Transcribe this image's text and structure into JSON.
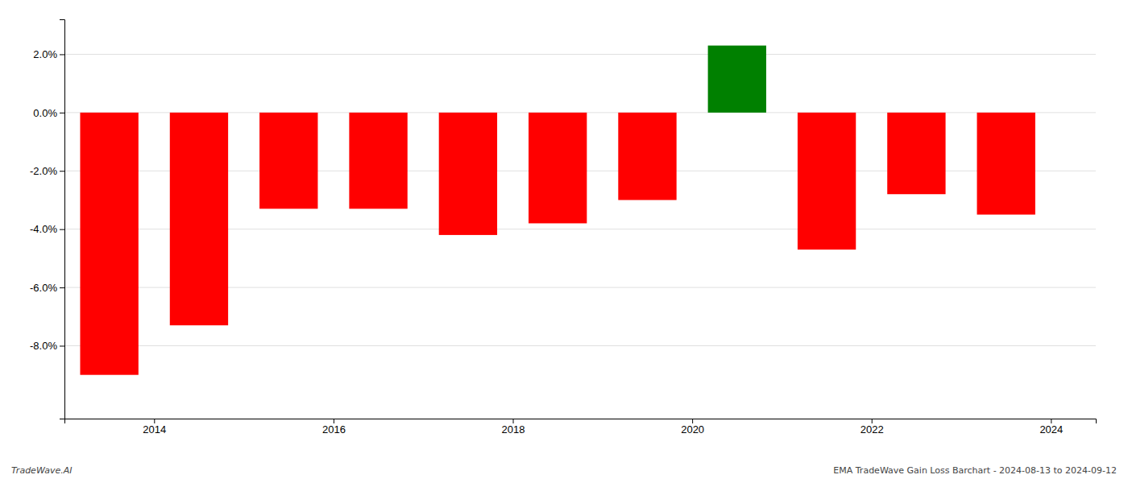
{
  "chart_data": {
    "type": "bar",
    "x": [
      2013.5,
      2014.5,
      2015.5,
      2016.5,
      2017.5,
      2018.5,
      2019.5,
      2020.5,
      2021.5,
      2022.5,
      2023.5
    ],
    "values": [
      -0.09,
      -0.073,
      -0.033,
      -0.033,
      -0.042,
      -0.038,
      -0.03,
      0.023,
      -0.047,
      -0.028,
      -0.035
    ],
    "colors": [
      "#ff0000",
      "#ff0000",
      "#ff0000",
      "#ff0000",
      "#ff0000",
      "#ff0000",
      "#ff0000",
      "#008000",
      "#ff0000",
      "#ff0000",
      "#ff0000"
    ],
    "xlim": [
      2013.0,
      2024.5
    ],
    "xticks": [
      2014,
      2016,
      2018,
      2020,
      2022,
      2024
    ],
    "ylim": [
      -0.105,
      0.032
    ],
    "yticks": [
      {
        "value": -0.08,
        "label": "-8.0%"
      },
      {
        "value": -0.06,
        "label": "-6.0%"
      },
      {
        "value": -0.04,
        "label": "-4.0%"
      },
      {
        "value": -0.02,
        "label": "-2.0%"
      },
      {
        "value": 0.0,
        "label": "0.0%"
      },
      {
        "value": 0.02,
        "label": "2.0%"
      }
    ],
    "grid": true,
    "annotations": [
      "TradeWave.AI",
      "EMA TradeWave Gain Loss Barchart - 2024-08-13 to 2024-09-12"
    ]
  }
}
